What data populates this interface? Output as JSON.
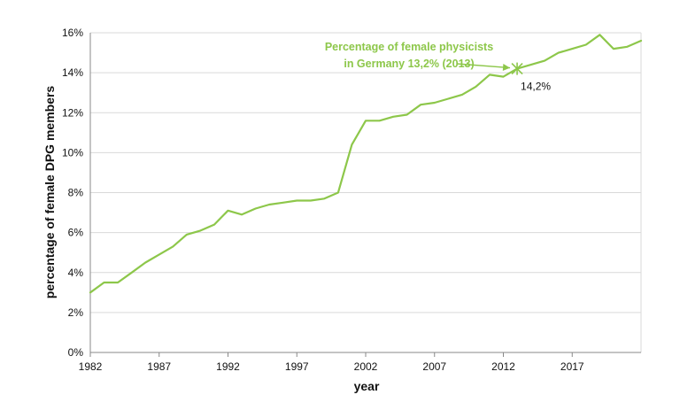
{
  "chart_data": {
    "type": "line",
    "title": "",
    "xlabel": "year",
    "ylabel": "percentage of female  DPG members",
    "xlim": [
      1982,
      2022
    ],
    "ylim": [
      0,
      16
    ],
    "grid": true,
    "x_ticks": [
      1982,
      1987,
      1992,
      1997,
      2002,
      2007,
      2012,
      2017
    ],
    "x_tick_labels": [
      "1982",
      "1987",
      "1992",
      "1997",
      "2002",
      "2007",
      "2012",
      "2017"
    ],
    "y_ticks": [
      0,
      2,
      4,
      6,
      8,
      10,
      12,
      14,
      16
    ],
    "y_tick_labels": [
      "0%",
      "2%",
      "4%",
      "6%",
      "8%",
      "10%",
      "12%",
      "14%",
      "16%"
    ],
    "series": [
      {
        "x": [
          1982,
          1983,
          1984,
          1985,
          1986,
          1987,
          1988,
          1989,
          1990,
          1991,
          1992,
          1993,
          1994,
          1995,
          1996,
          1997,
          1998,
          1999,
          2000,
          2001,
          2002,
          2003,
          2004,
          2005,
          2006,
          2007,
          2008,
          2009,
          2010,
          2011,
          2012,
          2013,
          2014,
          2015,
          2016,
          2017,
          2018,
          2019,
          2020,
          2021,
          2022
        ],
        "values": [
          3.0,
          3.5,
          3.5,
          4.0,
          4.5,
          4.9,
          5.3,
          5.9,
          6.1,
          6.4,
          7.1,
          6.9,
          7.2,
          7.4,
          7.5,
          7.6,
          7.6,
          7.7,
          8.0,
          10.4,
          11.6,
          11.6,
          11.8,
          11.9,
          12.4,
          12.5,
          12.7,
          12.9,
          13.3,
          13.9,
          13.8,
          14.2,
          14.4,
          14.6,
          15.0,
          15.2,
          15.4,
          15.9,
          15.2,
          15.3,
          15.6
        ]
      }
    ],
    "annotations": [
      {
        "text_lines": [
          "Percentage of female physicists",
          "in Germany 13,2% (2013)"
        ],
        "x": 2013,
        "y": 14.2,
        "marker": "asterisk",
        "marker_label": "14,2%"
      }
    ],
    "colors": {
      "line": "#8DC74A",
      "annotation": "#8DC74A",
      "grid": "#D9D9D9",
      "axis": "#888888"
    }
  }
}
